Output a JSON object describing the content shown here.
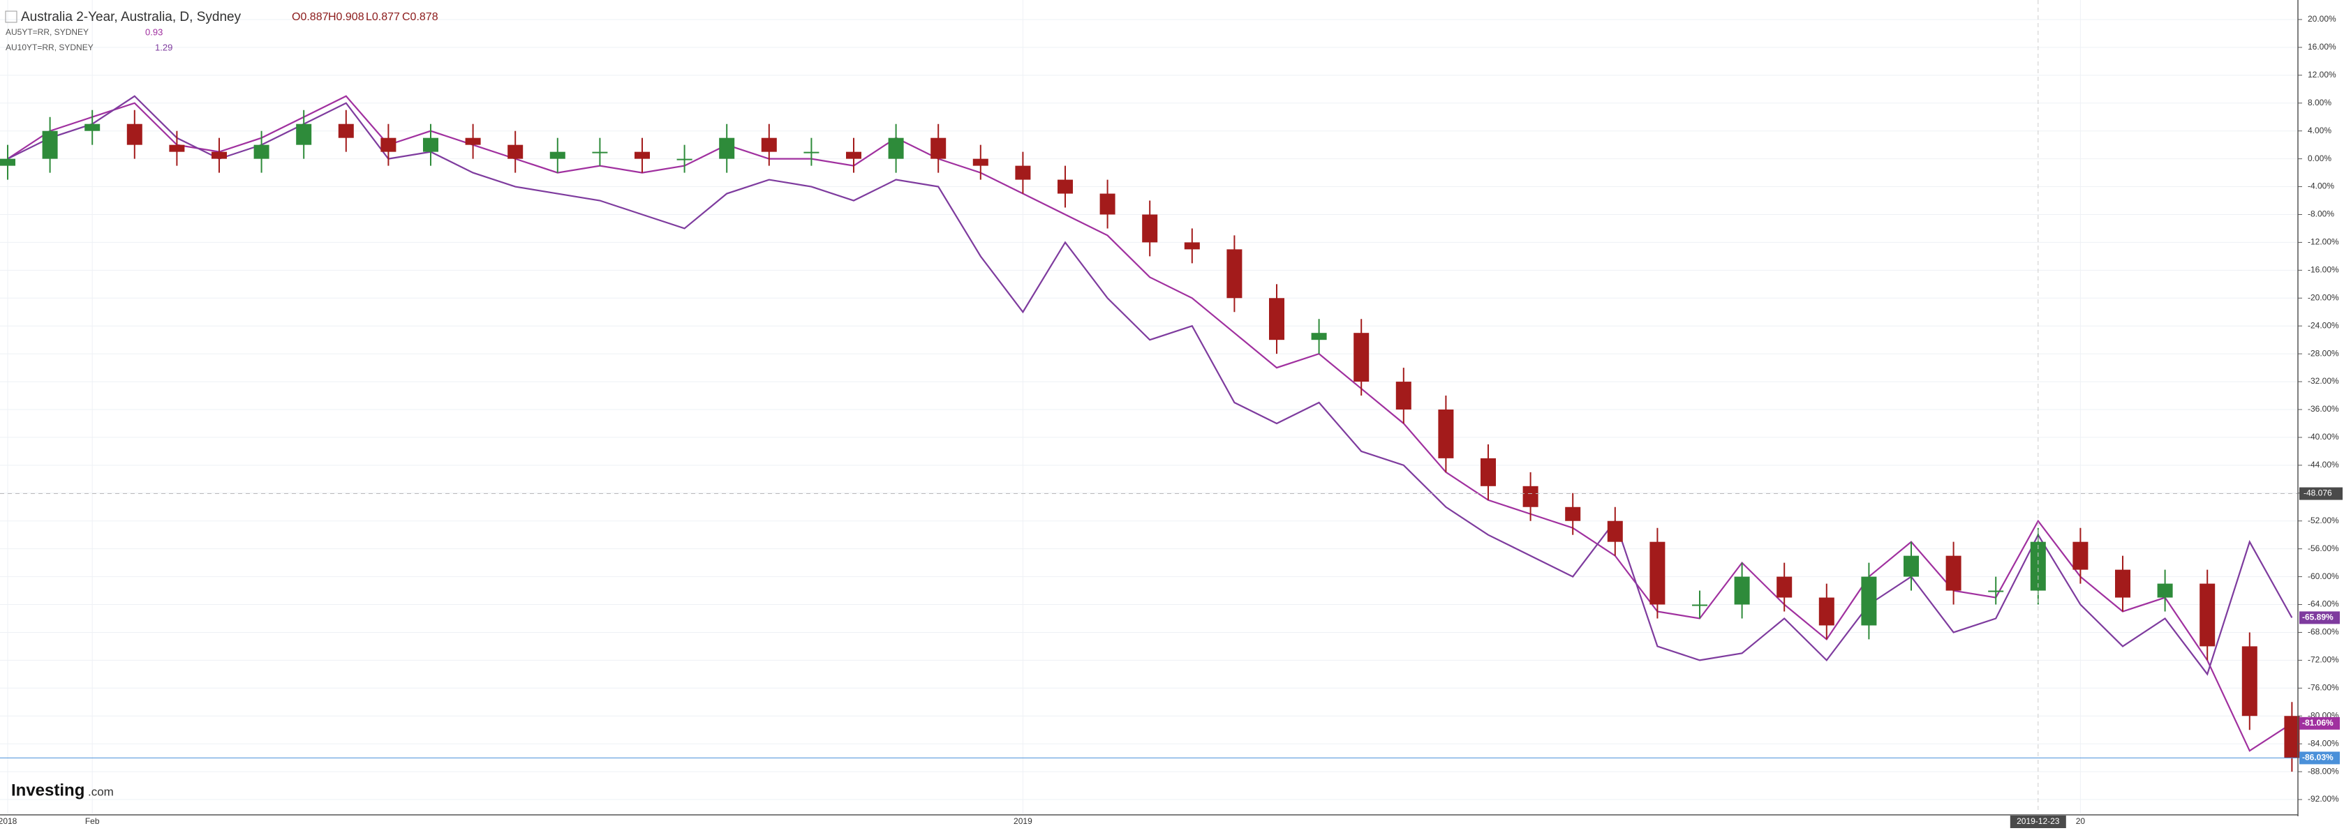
{
  "chart_data": {
    "type": "candlestick",
    "title": "Australia 2-Year, Australia, D, Sydney",
    "ohlc_labels": [
      "O0.887",
      "H0.908",
      "L0.877",
      "C0.878"
    ],
    "logo": {
      "brand": "Investing",
      "suffix": ".com"
    },
    "categories": [
      "2018",
      null,
      "Feb",
      null,
      null,
      null,
      null,
      null,
      null,
      null,
      null,
      null,
      null,
      null,
      null,
      null,
      null,
      null,
      null,
      null,
      null,
      null,
      null,
      null,
      "2019",
      null,
      null,
      null,
      null,
      null,
      null,
      null,
      null,
      null,
      null,
      null,
      null,
      null,
      null,
      null,
      null,
      null,
      null,
      null,
      null,
      null,
      null,
      null,
      null,
      "20",
      null,
      null,
      null,
      null,
      null
    ],
    "ylim": [
      -94,
      22
    ],
    "yticks": [
      {
        "value": 20,
        "label": "20.00%"
      },
      {
        "value": 16,
        "label": "16.00%"
      },
      {
        "value": 12,
        "label": "12.00%"
      },
      {
        "value": 8,
        "label": "8.00%"
      },
      {
        "value": 4,
        "label": "4.00%"
      },
      {
        "value": 0,
        "label": "0.00%"
      },
      {
        "value": -4,
        "label": "-4.00%"
      },
      {
        "value": -8,
        "label": "-8.00%"
      },
      {
        "value": -12,
        "label": "-12.00%"
      },
      {
        "value": -16,
        "label": "-16.00%"
      },
      {
        "value": -20,
        "label": "-20.00%"
      },
      {
        "value": -24,
        "label": "-24.00%"
      },
      {
        "value": -28,
        "label": "-28.00%"
      },
      {
        "value": -32,
        "label": "-32.00%"
      },
      {
        "value": -36,
        "label": "-36.00%"
      },
      {
        "value": -40,
        "label": "-40.00%"
      },
      {
        "value": -44,
        "label": "-44.00%"
      },
      {
        "value": -48,
        "label": "-48.00%"
      },
      {
        "value": -52,
        "label": "-52.00%"
      },
      {
        "value": -56,
        "label": "-56.00%"
      },
      {
        "value": -60,
        "label": "-60.00%"
      },
      {
        "value": -64,
        "label": "-64.00%"
      },
      {
        "value": -68,
        "label": "-68.00%"
      },
      {
        "value": -72,
        "label": "-72.00%"
      },
      {
        "value": -76,
        "label": "-76.00%"
      },
      {
        "value": -80,
        "label": "-80.00%"
      },
      {
        "value": -84,
        "label": "-84.00%"
      },
      {
        "value": -88,
        "label": "-88.00%"
      },
      {
        "value": -92,
        "label": "-92.00%"
      }
    ],
    "grid": true,
    "candles": {
      "up_color": "#2e8b3a",
      "down_color": "#a31b1b",
      "last_color": "#4a90d9",
      "last_label": "-86.03%",
      "open": [
        -1,
        0,
        4,
        5,
        2,
        1,
        0,
        2,
        5,
        3,
        1,
        3,
        2,
        0,
        1,
        1,
        0,
        0,
        3,
        1,
        1,
        0,
        3,
        0,
        -1,
        -3,
        -5,
        -8,
        -12,
        -13,
        -20,
        -26,
        -25,
        -32,
        -36,
        -43,
        -47,
        -50,
        -52,
        -55,
        -64,
        -64,
        -60,
        -63,
        -67,
        -60,
        -57,
        -62,
        -62,
        -55,
        -59,
        -63,
        -61,
        -70,
        -80
      ],
      "high": [
        2,
        6,
        7,
        7,
        4,
        3,
        4,
        7,
        7,
        5,
        5,
        5,
        4,
        3,
        3,
        3,
        2,
        5,
        5,
        3,
        3,
        5,
        5,
        2,
        1,
        -1,
        -3,
        -6,
        -10,
        -11,
        -18,
        -23,
        -23,
        -30,
        -34,
        -41,
        -45,
        -48,
        -50,
        -53,
        -62,
        -58,
        -58,
        -61,
        -58,
        -55,
        -55,
        -60,
        -53,
        -53,
        -57,
        -59,
        -59,
        -68,
        -78
      ],
      "low": [
        -3,
        -2,
        2,
        0,
        -1,
        -2,
        -2,
        0,
        1,
        -1,
        -1,
        0,
        -2,
        -2,
        -1,
        -2,
        -2,
        -2,
        -1,
        -1,
        -2,
        -2,
        -2,
        -3,
        -5,
        -7,
        -10,
        -14,
        -15,
        -22,
        -28,
        -28,
        -34,
        -38,
        -45,
        -49,
        -52,
        -54,
        -57,
        -66,
        -66,
        -66,
        -65,
        -69,
        -69,
        -62,
        -64,
        -64,
        -64,
        -61,
        -65,
        -65,
        -72,
        -82,
        -88
      ],
      "close": [
        0,
        4,
        5,
        2,
        1,
        0,
        2,
        5,
        3,
        1,
        3,
        2,
        0,
        1,
        1,
        0,
        0,
        3,
        1,
        1,
        0,
        3,
        0,
        -1,
        -3,
        -5,
        -8,
        -12,
        -13,
        -20,
        -26,
        -25,
        -32,
        -36,
        -43,
        -47,
        -50,
        -52,
        -55,
        -64,
        -64,
        -60,
        -63,
        -67,
        -60,
        -57,
        -62,
        -62,
        -55,
        -59,
        -63,
        -61,
        -70,
        -80,
        -86.03
      ]
    },
    "series": [
      {
        "name": "AU5YT=RR, SYDNEY",
        "legend_value": "0.93",
        "color": "#a0309f",
        "last_label": "-81.06%",
        "values": [
          0,
          4,
          6,
          8,
          2,
          1,
          3,
          6,
          9,
          2,
          4,
          2,
          0,
          -2,
          -1,
          -2,
          -1,
          2,
          0,
          0,
          -1,
          3,
          0,
          -2,
          -5,
          -8,
          -11,
          -17,
          -20,
          -25,
          -30,
          -28,
          -33,
          -38,
          -45,
          -49,
          -51,
          -53,
          -57,
          -65,
          -66,
          -58,
          -64,
          -69,
          -60,
          -55,
          -62,
          -63,
          -52,
          -60,
          -65,
          -63,
          -72,
          -85,
          -81.06
        ]
      },
      {
        "name": "AU10YT=RR, SYDNEY",
        "legend_value": "1.29",
        "color": "#7e3b9e",
        "last_label": "-65.89%",
        "values": [
          0,
          3,
          5,
          9,
          3,
          0,
          2,
          5,
          8,
          0,
          1,
          -2,
          -4,
          -5,
          -6,
          -8,
          -10,
          -5,
          -3,
          -4,
          -6,
          -3,
          -4,
          -14,
          -22,
          -12,
          -20,
          -26,
          -24,
          -35,
          -38,
          -35,
          -42,
          -44,
          -50,
          -54,
          -57,
          -60,
          -52,
          -70,
          -72,
          -71,
          -66,
          -72,
          -64,
          -60,
          -68,
          -66,
          -54,
          -64,
          -70,
          -66,
          -74,
          -55,
          -65.89
        ]
      }
    ],
    "crosshair": {
      "date": "2019-12-23",
      "value": -48.076
    }
  }
}
